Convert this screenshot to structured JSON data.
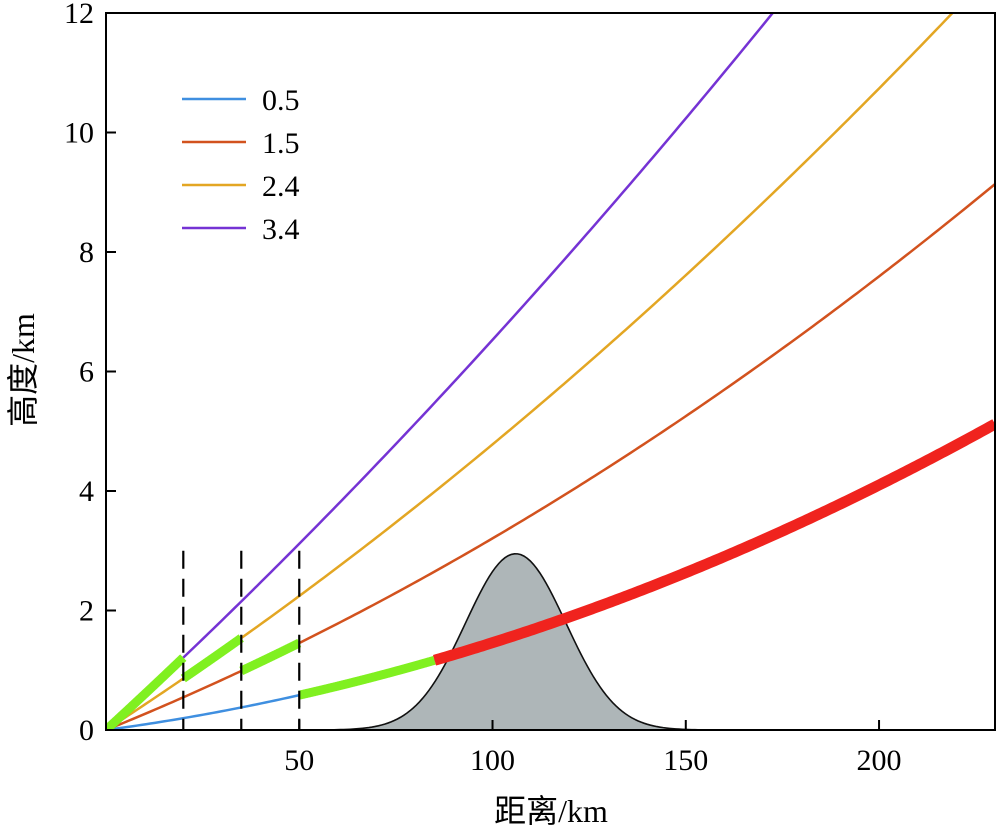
{
  "chart_data": {
    "type": "line",
    "title": "",
    "xlabel": "距离/km",
    "ylabel": "高度/km",
    "xlim": [
      0,
      230
    ],
    "ylim": [
      0,
      12
    ],
    "xticks": [
      50,
      100,
      150,
      200
    ],
    "yticks": [
      0,
      2,
      4,
      6,
      8,
      10,
      12
    ],
    "grid": false,
    "legend_position": "top-left",
    "series": [
      {
        "name": "0.5",
        "color": "#3f8fe0",
        "elevation_deg": 0.5
      },
      {
        "name": "1.5",
        "color": "#d2521e",
        "elevation_deg": 1.5
      },
      {
        "name": "2.4",
        "color": "#e3a623",
        "elevation_deg": 2.4
      },
      {
        "name": "3.4",
        "color": "#7533d4",
        "elevation_deg": 3.4
      }
    ],
    "highlight_segments": [
      {
        "series": "3.4",
        "x": [
          0,
          20
        ],
        "color": "#80f020"
      },
      {
        "series": "2.4",
        "x": [
          20,
          35
        ],
        "color": "#80f020"
      },
      {
        "series": "1.5",
        "x": [
          35,
          50
        ],
        "color": "#80f020"
      },
      {
        "series": "0.5",
        "x": [
          50,
          85
        ],
        "color": "#80f020"
      },
      {
        "series": "0.5",
        "x": [
          85,
          230
        ],
        "color": "#f0231e"
      }
    ],
    "reference_lines": [
      {
        "x": 20,
        "ymax": 3.0
      },
      {
        "x": 35,
        "ymax": 3.0
      },
      {
        "x": 50,
        "ymax": 3.0
      }
    ],
    "terrain": {
      "color": "#aeb6b8",
      "peak_x": 106,
      "peak_y": 2.95,
      "sigma_km": 13,
      "x_range": [
        41,
        172
      ]
    }
  }
}
